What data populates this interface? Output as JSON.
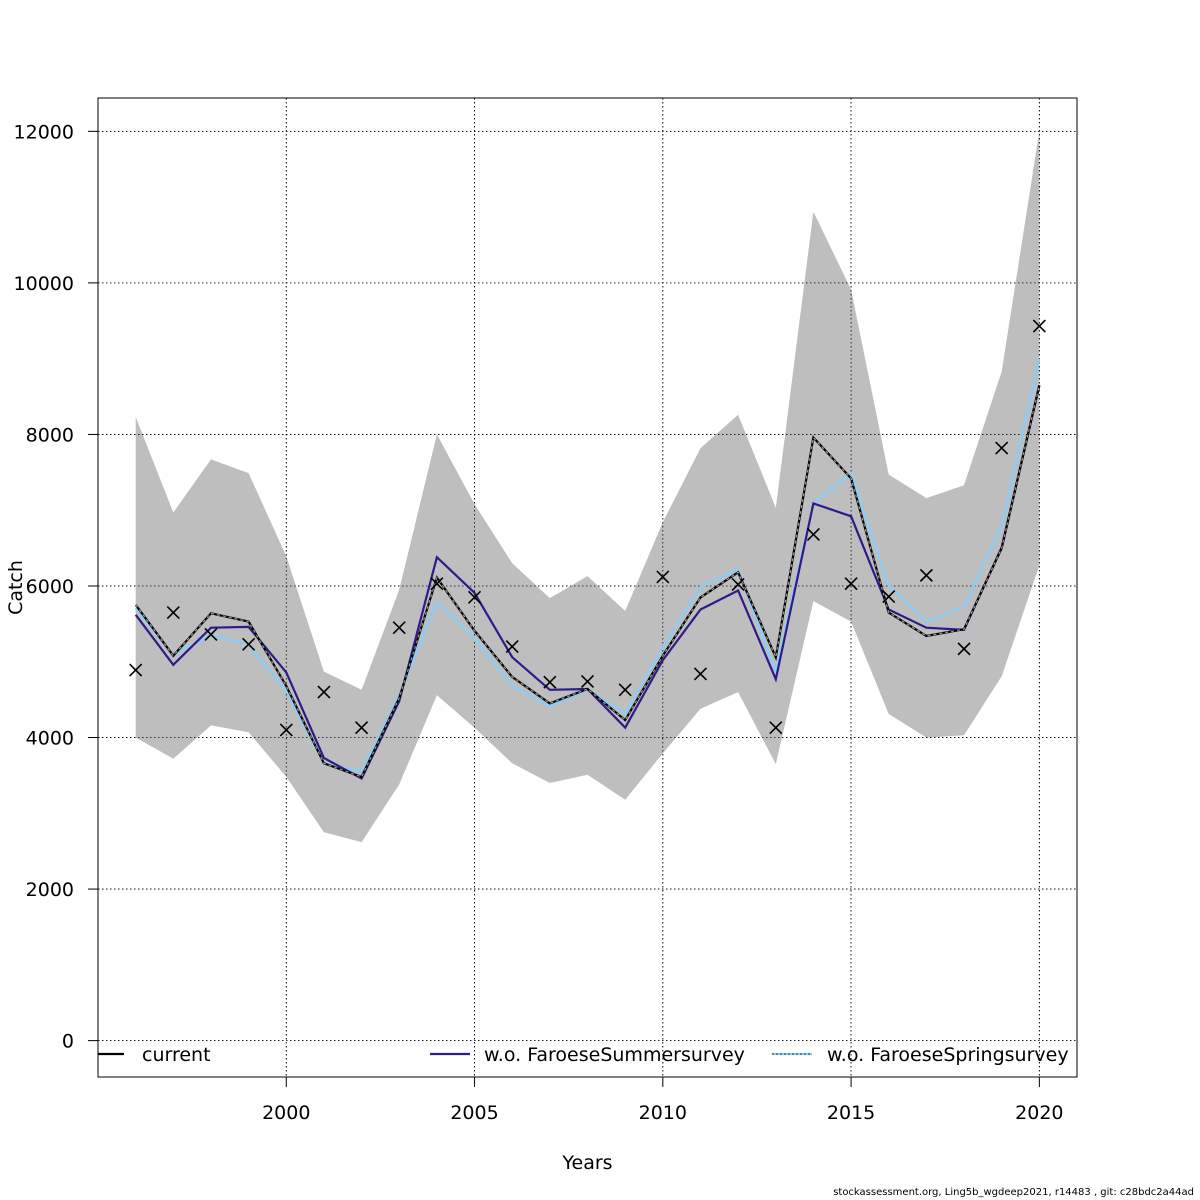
{
  "chart_data": {
    "type": "line",
    "xlabel": "Years",
    "ylabel": "Catch",
    "xlim": [
      1995,
      2021
    ],
    "ylim": [
      -480,
      12440
    ],
    "x_ticks": [
      2000,
      2005,
      2010,
      2015,
      2020
    ],
    "x_tick_labels": [
      "2000",
      "2005",
      "2010",
      "2015",
      "2020"
    ],
    "y_ticks": [
      0,
      2000,
      4000,
      6000,
      8000,
      10000,
      12000
    ],
    "y_tick_labels": [
      "0",
      "2000",
      "4000",
      "6000",
      "8000",
      "10000",
      "12000"
    ],
    "grid": true,
    "x": [
      1996,
      1997,
      1998,
      1999,
      2000,
      2001,
      2002,
      2003,
      2004,
      2005,
      2006,
      2007,
      2008,
      2009,
      2010,
      2011,
      2012,
      2013,
      2014,
      2015,
      2016,
      2017,
      2018,
      2019,
      2020
    ],
    "band": {
      "color": "#bebebe",
      "lower": [
        4000,
        3720,
        4160,
        4070,
        3480,
        2750,
        2620,
        3380,
        4560,
        4130,
        3660,
        3400,
        3510,
        3180,
        3790,
        4380,
        4600,
        3650,
        5800,
        5530,
        4310,
        4000,
        4030,
        4810,
        6270
      ],
      "upper": [
        8230,
        6970,
        7670,
        7490,
        6390,
        4870,
        4630,
        5950,
        8000,
        7080,
        6300,
        5840,
        6130,
        5670,
        6840,
        7820,
        8260,
        7030,
        10940,
        9910,
        7470,
        7160,
        7330,
        8830,
        12000
      ]
    },
    "observations": {
      "marker": "x",
      "color": "#000000",
      "values": [
        4890,
        5650,
        5360,
        5230,
        4100,
        4600,
        4130,
        5450,
        6030,
        5850,
        5200,
        4730,
        4740,
        4630,
        6120,
        4840,
        6020,
        4130,
        6680,
        6030,
        5860,
        6140,
        5170,
        7820,
        9430
      ]
    },
    "series": [
      {
        "name": "current",
        "color": "#000000",
        "dash": "solid",
        "values": [
          5750,
          5080,
          5640,
          5530,
          4680,
          3660,
          3480,
          4520,
          6110,
          5410,
          4800,
          4450,
          4640,
          4230,
          5080,
          5850,
          6180,
          5060,
          7960,
          7420,
          5650,
          5340,
          5430,
          6500,
          8650
        ]
      },
      {
        "name": "w.o. FaroeseSummersurvey",
        "color": "#2e1b8a",
        "dash": "solid",
        "values": [
          5620,
          4960,
          5450,
          5460,
          4860,
          3730,
          3460,
          4480,
          6380,
          5910,
          5060,
          4630,
          4640,
          4130,
          5020,
          5690,
          5940,
          4770,
          7090,
          6920,
          5690,
          5450,
          5420,
          6510,
          8640
        ]
      },
      {
        "name": "w.o. FaroeseSpringsurvey",
        "color": "#87cefa",
        "dash": "solid",
        "values": [
          5710,
          5090,
          5350,
          5220,
          4620,
          3650,
          3550,
          4560,
          5790,
          5310,
          4680,
          4410,
          4630,
          4310,
          5190,
          5980,
          6220,
          4870,
          7090,
          7490,
          6010,
          5530,
          5730,
          6790,
          9000
        ]
      }
    ],
    "legend": {
      "placement": "bottom",
      "entries": [
        "current",
        "w.o. FaroeseSummersurvey",
        "w.o. FaroeseSpringsurvey"
      ]
    }
  },
  "footer": "stockassessment.org, Ling5b_wgdeep2021, r14483 , git: c28bdc2a44ad"
}
